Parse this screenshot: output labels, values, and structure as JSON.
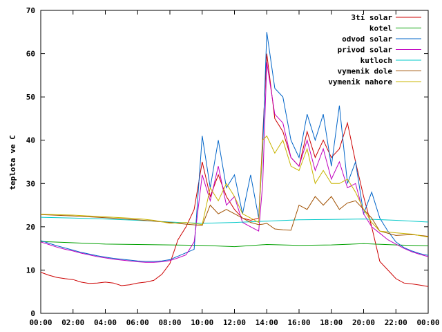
{
  "chart_data": {
    "type": "line",
    "title": "",
    "xlabel": "",
    "ylabel": "teplota ve C",
    "ylim": [
      0,
      70
    ],
    "xlim": [
      "00:00",
      "24:00"
    ],
    "yticks": [
      0,
      10,
      20,
      30,
      40,
      50,
      60,
      70
    ],
    "xticks": [
      "00:00",
      "02:00",
      "04:00",
      "06:00",
      "08:00",
      "10:00",
      "12:00",
      "14:00",
      "16:00",
      "18:00",
      "20:00",
      "22:00",
      "00:00"
    ],
    "grid": false,
    "legend_position": "top-right",
    "series": [
      {
        "name": "3ti solar",
        "color": "#cc0000",
        "x": [
          "00:00",
          "00:30",
          "01:00",
          "01:30",
          "02:00",
          "02:30",
          "03:00",
          "03:30",
          "04:00",
          "04:30",
          "05:00",
          "05:30",
          "06:00",
          "06:30",
          "07:00",
          "07:30",
          "08:00",
          "08:30",
          "09:00",
          "09:30",
          "10:00",
          "10:30",
          "11:00",
          "11:30",
          "12:00",
          "12:30",
          "13:00",
          "13:30",
          "13:45",
          "14:00",
          "14:30",
          "15:00",
          "15:30",
          "16:00",
          "16:30",
          "17:00",
          "17:30",
          "18:00",
          "18:30",
          "19:00",
          "19:30",
          "20:00",
          "20:30",
          "21:00",
          "21:30",
          "22:00",
          "22:30",
          "23:00",
          "23:30",
          "24:00"
        ],
        "values": [
          9.5,
          8.8,
          8.3,
          8.0,
          7.8,
          7.2,
          6.9,
          7.0,
          7.2,
          7.0,
          6.4,
          6.6,
          7.0,
          7.2,
          7.6,
          9.0,
          11.5,
          17.0,
          20.0,
          24.0,
          35.0,
          27.0,
          32.0,
          27.0,
          24.0,
          22.0,
          21.5,
          22.0,
          41.0,
          60.0,
          45.0,
          42.0,
          36.0,
          34.0,
          42.0,
          36.0,
          40.0,
          36.0,
          38.0,
          44.0,
          35.0,
          27.0,
          20.0,
          12.0,
          10.0,
          8.0,
          7.0,
          6.8,
          6.5,
          6.2
        ]
      },
      {
        "name": "kotel",
        "color": "#00a000",
        "x": [
          "00:00",
          "02:00",
          "04:00",
          "06:00",
          "08:00",
          "10:00",
          "12:00",
          "14:00",
          "16:00",
          "18:00",
          "20:00",
          "22:00",
          "24:00"
        ],
        "values": [
          16.6,
          16.3,
          16.0,
          15.9,
          15.8,
          15.7,
          15.4,
          15.9,
          15.7,
          15.8,
          16.1,
          15.8,
          15.6
        ]
      },
      {
        "name": "odvod solar",
        "color": "#0064c8",
        "x": [
          "00:00",
          "00:30",
          "01:00",
          "01:30",
          "02:00",
          "02:30",
          "03:00",
          "03:30",
          "04:00",
          "04:30",
          "05:00",
          "05:30",
          "06:00",
          "06:30",
          "07:00",
          "07:30",
          "08:00",
          "08:30",
          "09:00",
          "09:30",
          "10:00",
          "10:30",
          "11:00",
          "11:30",
          "12:00",
          "12:30",
          "13:00",
          "13:30",
          "13:45",
          "14:00",
          "14:30",
          "15:00",
          "15:30",
          "16:00",
          "16:30",
          "17:00",
          "17:30",
          "18:00",
          "18:30",
          "19:00",
          "19:30",
          "20:00",
          "20:30",
          "21:00",
          "21:30",
          "22:00",
          "22:30",
          "23:00",
          "23:30",
          "24:00"
        ],
        "values": [
          16.8,
          16.2,
          15.6,
          15.1,
          14.6,
          14.1,
          13.7,
          13.3,
          13.0,
          12.7,
          12.5,
          12.3,
          12.1,
          12.0,
          12.0,
          12.1,
          12.4,
          13.2,
          14.0,
          14.8,
          41.0,
          29.0,
          40.0,
          29.0,
          32.0,
          23.0,
          32.0,
          22.0,
          38.0,
          65.0,
          52.0,
          50.0,
          40.0,
          36.0,
          46.0,
          40.0,
          46.0,
          34.0,
          48.0,
          30.0,
          35.0,
          23.0,
          28.0,
          22.0,
          19.0,
          16.5,
          15.2,
          14.4,
          13.8,
          13.4
        ]
      },
      {
        "name": "privod solar",
        "color": "#c000c0",
        "x": [
          "00:00",
          "00:30",
          "01:00",
          "01:30",
          "02:00",
          "02:30",
          "03:00",
          "03:30",
          "04:00",
          "04:30",
          "05:00",
          "05:30",
          "06:00",
          "06:30",
          "07:00",
          "07:30",
          "08:00",
          "08:30",
          "09:00",
          "09:30",
          "10:00",
          "10:30",
          "11:00",
          "11:30",
          "12:00",
          "12:30",
          "13:00",
          "13:30",
          "13:45",
          "14:00",
          "14:30",
          "15:00",
          "15:30",
          "16:00",
          "16:30",
          "17:00",
          "17:30",
          "18:00",
          "18:30",
          "19:00",
          "19:30",
          "20:00",
          "20:30",
          "21:00",
          "21:30",
          "22:00",
          "22:30",
          "23:00",
          "23:30",
          "24:00"
        ],
        "values": [
          16.5,
          15.9,
          15.3,
          14.8,
          14.4,
          13.9,
          13.5,
          13.1,
          12.8,
          12.5,
          12.3,
          12.1,
          11.9,
          11.8,
          11.8,
          11.9,
          12.2,
          12.8,
          13.5,
          16.5,
          32.0,
          26.0,
          34.0,
          25.0,
          27.0,
          21.0,
          20.0,
          19.0,
          30.0,
          58.0,
          46.0,
          44.0,
          36.0,
          34.0,
          40.0,
          33.0,
          38.0,
          31.0,
          35.0,
          29.0,
          30.0,
          23.0,
          20.0,
          18.5,
          17.0,
          16.0,
          15.0,
          14.2,
          13.6,
          13.1
        ]
      },
      {
        "name": "kutloch",
        "color": "#00c8c8",
        "x": [
          "00:00",
          "02:00",
          "04:00",
          "06:00",
          "08:00",
          "10:00",
          "12:00",
          "14:00",
          "16:00",
          "18:00",
          "20:00",
          "22:00",
          "24:00"
        ],
        "values": [
          22.2,
          22.0,
          21.8,
          21.5,
          21.1,
          20.8,
          21.0,
          21.3,
          21.6,
          21.7,
          21.8,
          21.5,
          21.1
        ]
      },
      {
        "name": "vymenik dole",
        "color": "#a05000",
        "x": [
          "00:00",
          "02:00",
          "04:00",
          "06:00",
          "08:00",
          "09:00",
          "10:00",
          "10:30",
          "11:00",
          "11:30",
          "12:00",
          "12:30",
          "13:00",
          "13:30",
          "13:45",
          "14:00",
          "14:30",
          "15:00",
          "15:30",
          "16:00",
          "16:30",
          "17:00",
          "17:30",
          "18:00",
          "18:30",
          "19:00",
          "19:30",
          "20:00",
          "20:30",
          "21:00",
          "22:00",
          "23:00",
          "24:00"
        ],
        "values": [
          22.8,
          22.5,
          22.1,
          21.6,
          21.0,
          20.6,
          20.3,
          25.0,
          23.0,
          24.0,
          23.0,
          22.0,
          21.0,
          20.5,
          20.6,
          20.8,
          19.5,
          19.3,
          19.2,
          25.0,
          24.0,
          27.0,
          25.0,
          27.0,
          24.0,
          25.5,
          26.0,
          24.0,
          22.0,
          19.0,
          18.0,
          18.2,
          17.8
        ]
      },
      {
        "name": "vymenik nahore",
        "color": "#c8b400",
        "x": [
          "00:00",
          "02:00",
          "04:00",
          "06:00",
          "07:00",
          "08:00",
          "09:00",
          "10:00",
          "10:30",
          "11:00",
          "11:30",
          "12:00",
          "12:30",
          "13:00",
          "13:30",
          "13:45",
          "14:00",
          "14:30",
          "15:00",
          "15:30",
          "16:00",
          "16:30",
          "17:00",
          "17:30",
          "18:00",
          "18:30",
          "19:00",
          "19:30",
          "20:00",
          "20:30",
          "21:00",
          "22:00",
          "23:00",
          "24:00"
        ],
        "values": [
          22.9,
          22.7,
          22.3,
          21.9,
          21.5,
          20.8,
          21.0,
          20.5,
          29.0,
          26.0,
          30.0,
          27.0,
          23.0,
          22.0,
          21.0,
          40.0,
          41.0,
          37.0,
          40.0,
          34.0,
          33.0,
          38.0,
          30.0,
          33.0,
          30.0,
          30.0,
          31.0,
          28.0,
          24.0,
          21.0,
          19.0,
          18.6,
          18.3,
          17.6
        ]
      }
    ]
  }
}
